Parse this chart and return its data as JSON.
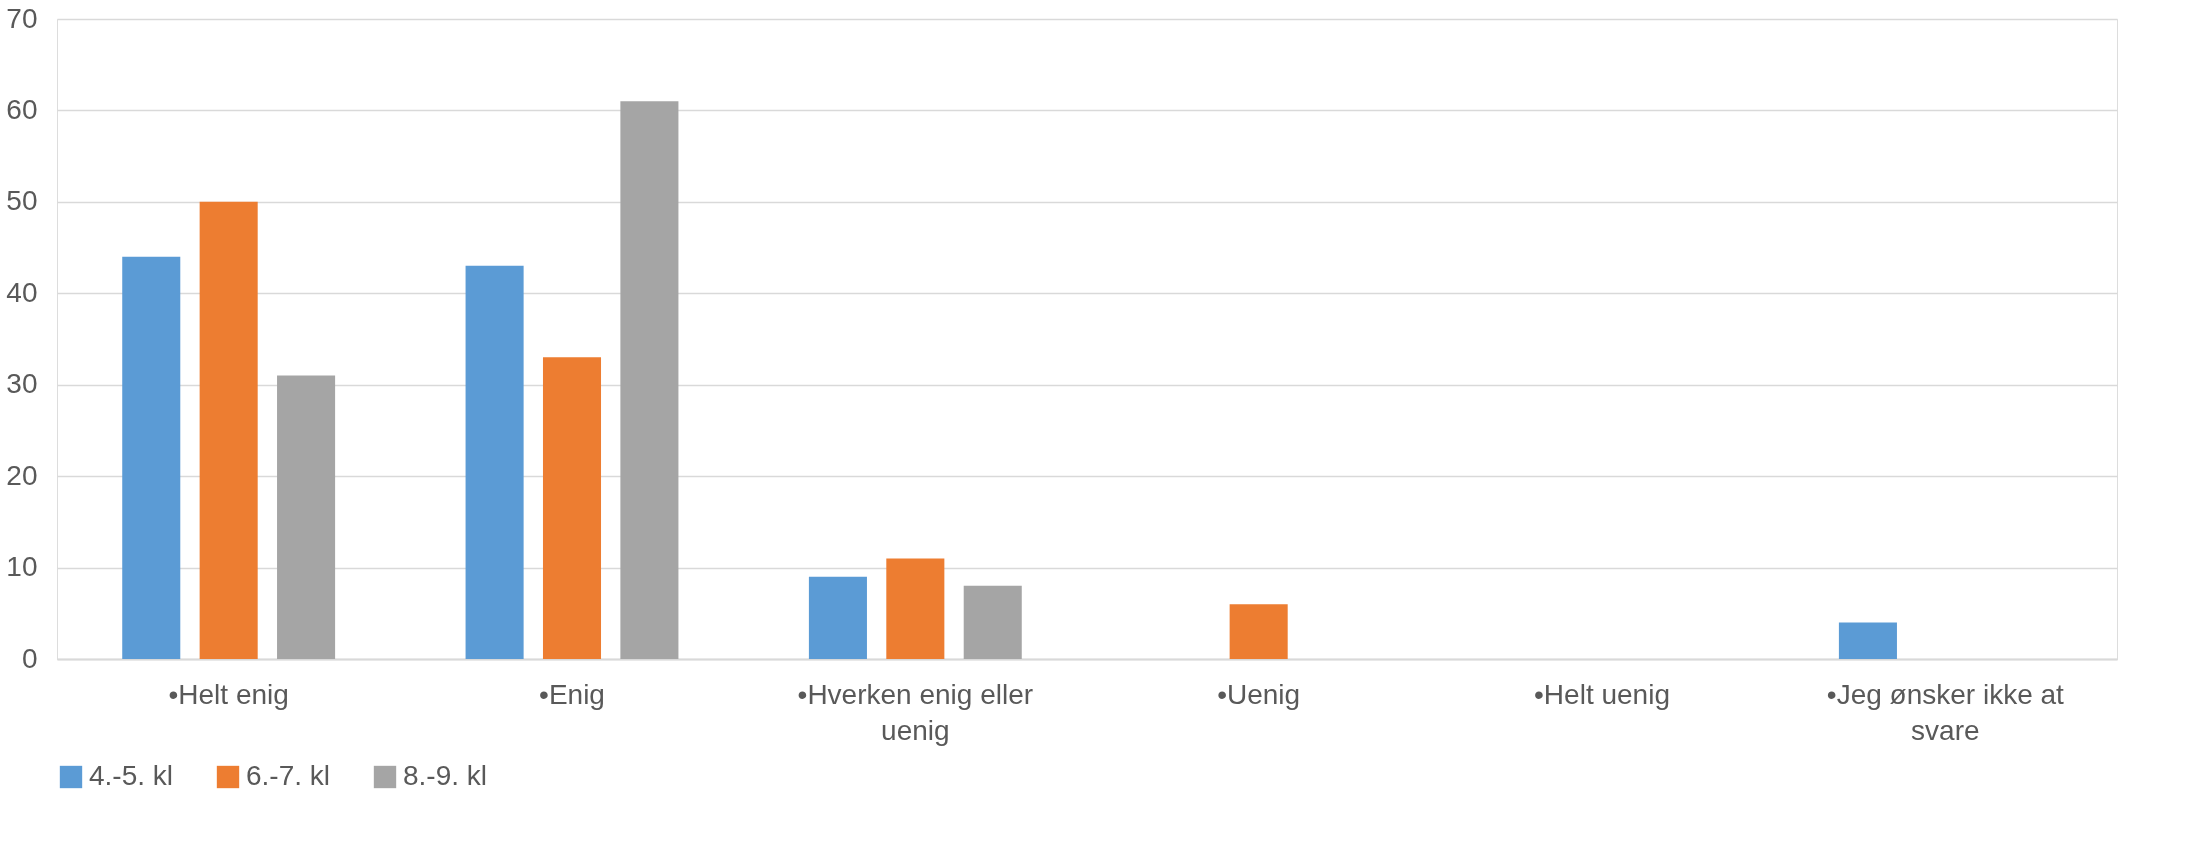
{
  "chart_data": {
    "type": "bar",
    "categories": [
      "•Helt enig",
      "•Enig",
      "•Hverken enig eller uenig",
      "•Uenig",
      "•Helt uenig",
      "•Jeg ønsker ikke at svare"
    ],
    "series": [
      {
        "name": "4.-5. kl",
        "color": "#5b9bd5",
        "values": [
          44,
          43,
          9,
          0,
          0,
          4
        ]
      },
      {
        "name": "6.-7. kl",
        "color": "#ed7d31",
        "values": [
          50,
          33,
          11,
          6,
          0,
          0
        ]
      },
      {
        "name": "8.-9. kl",
        "color": "#a5a5a5",
        "values": [
          31,
          61,
          8,
          0,
          0,
          0
        ]
      }
    ],
    "ylim": [
      0,
      70
    ],
    "yticks": [
      0,
      10,
      20,
      30,
      40,
      50,
      60,
      70
    ],
    "grid": "y",
    "legend": "bottom"
  }
}
